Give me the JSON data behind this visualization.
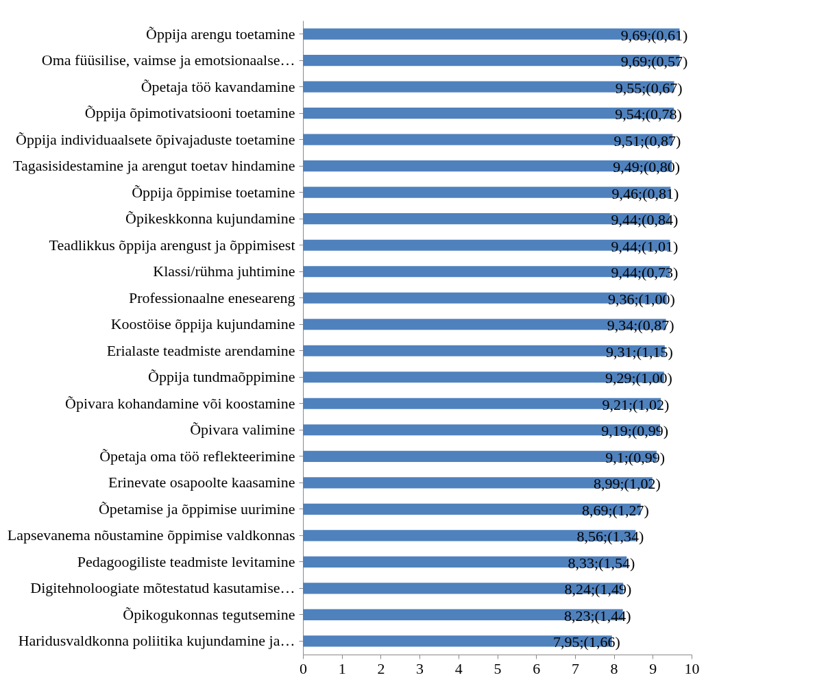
{
  "chart_data": {
    "type": "bar",
    "orientation": "horizontal",
    "color": "#4f81bd",
    "categories": [
      "Õppija arengu toetamine",
      "Oma füüsilise, vaimse ja emotsionaalse…",
      "Õpetaja töö kavandamine",
      "Õppija õpimotivatsiooni toetamine",
      "Õppija individuaalsete õpivajaduste toetamine",
      "Tagasisidestamine ja arengut toetav hindamine",
      "Õppija õppimise toetamine",
      "Õpikeskkonna kujundamine",
      "Teadlikkus õppija arengust ja õppimisest",
      "Klassi/rühma juhtimine",
      "Professionaalne eneseareng",
      "Koostöise õppija kujundamine",
      "Erialaste teadmiste arendamine",
      "Õppija tundmaõppimine",
      "Õpivara kohandamine või koostamine",
      "Õpivara valimine",
      "Õpetaja oma töö reflekteerimine",
      "Erinevate osapoolte kaasamine",
      "Õpetamise ja õppimise uurimine",
      "Lapsevanema nõustamine õppimise valdkonnas",
      "Pedagoogiliste teadmiste levitamine",
      "Digitehnoloogiate mõtestatud kasutamise…",
      "Õpikogukonnas tegutsemine",
      "Haridusvaldkonna poliitika kujundamine ja…"
    ],
    "values": [
      9.69,
      9.69,
      9.55,
      9.54,
      9.51,
      9.49,
      9.46,
      9.44,
      9.44,
      9.44,
      9.36,
      9.34,
      9.31,
      9.29,
      9.21,
      9.19,
      9.1,
      8.99,
      8.69,
      8.56,
      8.33,
      8.24,
      8.23,
      7.95
    ],
    "value_labels": [
      "9,69;(0,61)",
      "9,69;(0,57)",
      "9,55;(0,67)",
      "9,54;(0,78)",
      "9,51;(0,87)",
      "9,49;(0,80)",
      "9,46;(0,81)",
      "9,44;(0,84)",
      "9,44;(1,01)",
      "9,44;(0,73)",
      "9,36;(1,00)",
      "9,34;(0,87)",
      "9,31;(1,15)",
      "9,29;(1,00)",
      "9,21;(1,02)",
      "9,19;(0,99)",
      "9,1;(0,99)",
      "8,99;(1,02)",
      "8,69;(1,27)",
      "8,56;(1,34)",
      "8,33;(1,54)",
      "8,24;(1,49)",
      "8,23;(1,44)",
      "7,95;(1,66)"
    ],
    "xlim": [
      0,
      10
    ],
    "xticks": [
      0,
      1,
      2,
      3,
      4,
      5,
      6,
      7,
      8,
      9,
      10
    ],
    "grid": false
  }
}
